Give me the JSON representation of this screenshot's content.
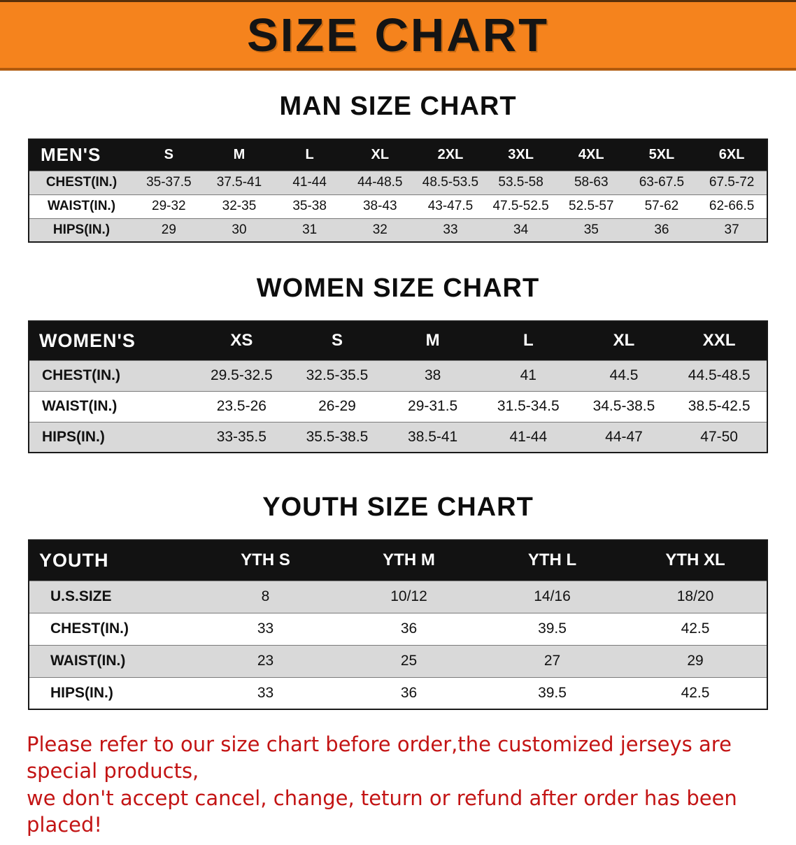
{
  "banner": {
    "title": "SIZE CHART"
  },
  "sections": {
    "men": {
      "heading": "MAN SIZE CHART",
      "table": {
        "header": [
          "MEN'S",
          "S",
          "M",
          "L",
          "XL",
          "2XL",
          "3XL",
          "4XL",
          "5XL",
          "6XL"
        ],
        "rows": [
          [
            "CHEST(IN.)",
            "35-37.5",
            "37.5-41",
            "41-44",
            "44-48.5",
            "48.5-53.5",
            "53.5-58",
            "58-63",
            "63-67.5",
            "67.5-72"
          ],
          [
            "WAIST(IN.)",
            "29-32",
            "32-35",
            "35-38",
            "38-43",
            "43-47.5",
            "47.5-52.5",
            "52.5-57",
            "57-62",
            "62-66.5"
          ],
          [
            "HIPS(IN.)",
            "29",
            "30",
            "31",
            "32",
            "33",
            "34",
            "35",
            "36",
            "37"
          ]
        ]
      }
    },
    "women": {
      "heading": "WOMEN SIZE CHART",
      "table": {
        "header": [
          "WOMEN'S",
          "XS",
          "S",
          "M",
          "L",
          "XL",
          "XXL"
        ],
        "rows": [
          [
            "CHEST(IN.)",
            "29.5-32.5",
            "32.5-35.5",
            "38",
            "41",
            "44.5",
            "44.5-48.5"
          ],
          [
            "WAIST(IN.)",
            "23.5-26",
            "26-29",
            "29-31.5",
            "31.5-34.5",
            "34.5-38.5",
            "38.5-42.5"
          ],
          [
            "HIPS(IN.)",
            "33-35.5",
            "35.5-38.5",
            "38.5-41",
            "41-44",
            "44-47",
            "47-50"
          ]
        ]
      }
    },
    "youth": {
      "heading": "YOUTH SIZE CHART",
      "table": {
        "header": [
          "YOUTH",
          "YTH S",
          "YTH M",
          "YTH L",
          "YTH XL"
        ],
        "rows": [
          [
            "U.S.SIZE",
            "8",
            "10/12",
            "14/16",
            "18/20"
          ],
          [
            "CHEST(IN.)",
            "33",
            "36",
            "39.5",
            "42.5"
          ],
          [
            "WAIST(IN.)",
            "23",
            "25",
            "27",
            "29"
          ],
          [
            "HIPS(IN.)",
            "33",
            "36",
            "39.5",
            "42.5"
          ]
        ]
      }
    }
  },
  "footer": {
    "line1": "Please refer to our size chart before order,the customized jerseys are special products,",
    "line2": "we don't accept cancel, change, teturn or refund after order has been placed!"
  },
  "colors": {
    "banner_bg": "#F5831D",
    "header_bg": "#121212",
    "row_alt": "#D9D9D9",
    "footer_red": "#C31414"
  }
}
